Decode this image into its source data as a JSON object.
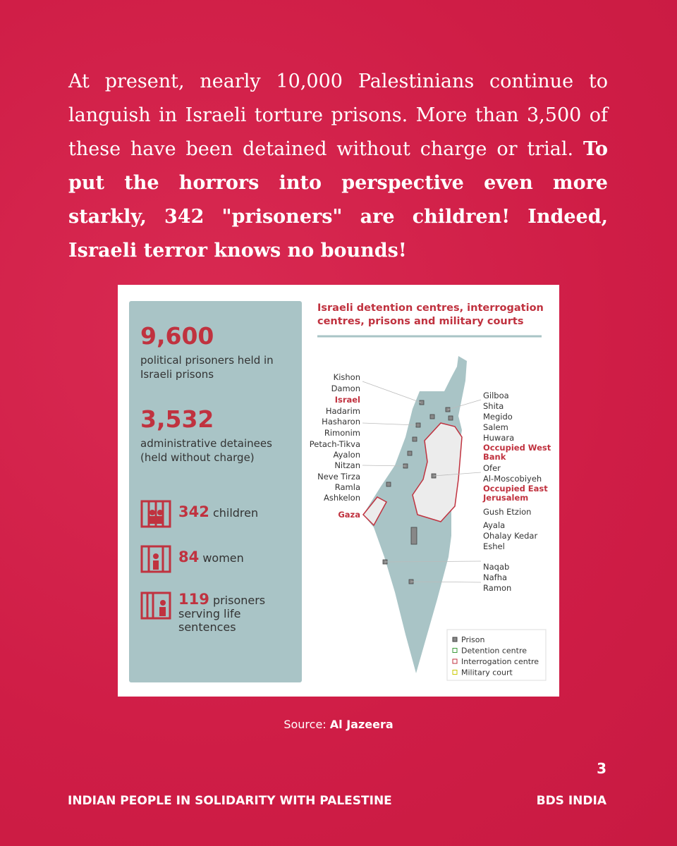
{
  "intro": {
    "plain": "At present, nearly 10,000 Palestinians continue to languish in Israeli torture prisons. More than 3,500 of these have been detained without charge or trial.",
    "bold": "To put the horrors into perspective even more starkly, 342 \"prisoners\" are children! Indeed, Israeli terror knows no bounds!"
  },
  "infographic": {
    "stats": [
      {
        "number": "9,600",
        "text": "political prisoners held in Israeli prisons"
      },
      {
        "number": "3,532",
        "text": "administrative detainees (held without charge)"
      }
    ],
    "icon_stats": [
      {
        "number": "342",
        "text": "children"
      },
      {
        "number": "84",
        "text": "women"
      },
      {
        "number": "119",
        "text": "prisoners serving life sentences"
      }
    ],
    "map": {
      "title": "Israeli detention centres, interrogation centres, prisons and military courts",
      "left_labels": [
        {
          "text": "Kishon"
        },
        {
          "text": "Damon"
        },
        {
          "text": "Israel",
          "color": "#c0323f"
        },
        {
          "text": "Hadarim"
        },
        {
          "text": "Hasharon"
        },
        {
          "text": "Rimonim"
        },
        {
          "text": "Petach-Tikva"
        },
        {
          "text": "Ayalon"
        },
        {
          "text": "Nitzan"
        },
        {
          "text": "Neve Tirza"
        },
        {
          "text": "Ramla"
        },
        {
          "text": "Ashkelon"
        },
        {
          "text": "Gaza",
          "color": "#c0323f"
        }
      ],
      "right_labels": [
        {
          "text": "Gilboa"
        },
        {
          "text": "Shita"
        },
        {
          "text": "Megido"
        },
        {
          "text": "Salem"
        },
        {
          "text": "Huwara"
        },
        {
          "text": "Occupied West Bank",
          "color": "#c0323f"
        },
        {
          "text": "Ofer"
        },
        {
          "text": "Al-Moscobiyeh"
        },
        {
          "text": "Occupied East Jerusalem",
          "color": "#c0323f"
        },
        {
          "text": "Gush Etzion"
        },
        {
          "text": "Ayala"
        },
        {
          "text": "Ohalay Kedar"
        },
        {
          "text": "Eshel"
        },
        {
          "text": "Naqab"
        },
        {
          "text": "Nafha"
        },
        {
          "text": "Ramon"
        }
      ],
      "legend": [
        "Prison",
        "Detention centre",
        "Interrogation centre",
        "Military court"
      ]
    }
  },
  "source": {
    "label": "Source:",
    "name": "Al Jazeera"
  },
  "footer": {
    "page": "3",
    "left": "INDIAN PEOPLE IN SOLIDARITY WITH PALESTINE",
    "right": "BDS INDIA"
  }
}
